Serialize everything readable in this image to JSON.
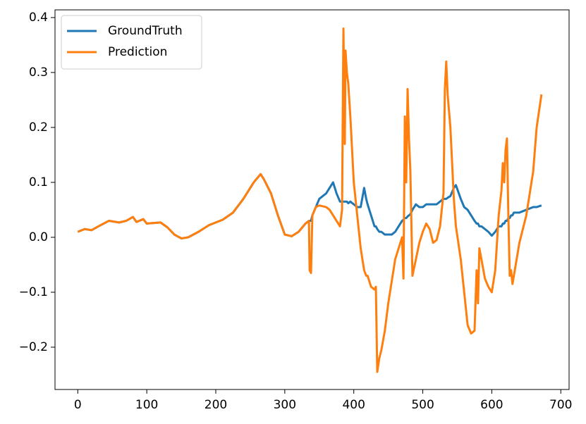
{
  "chart_data": {
    "type": "line",
    "x": [
      0,
      10,
      20,
      30,
      45,
      60,
      70,
      80,
      85,
      95,
      100,
      120,
      130,
      140,
      150,
      160,
      175,
      190,
      210,
      225,
      240,
      255,
      265,
      270,
      280,
      290,
      300,
      310,
      320,
      330,
      335,
      336,
      338,
      340,
      345,
      350,
      360,
      365,
      370,
      375,
      380,
      383,
      385,
      387,
      388,
      390,
      392,
      395,
      400,
      405,
      410,
      415,
      418,
      420,
      425,
      430,
      432,
      434,
      437,
      440,
      445,
      450,
      455,
      460,
      465,
      470,
      472,
      474,
      476,
      478,
      480,
      482,
      485,
      490,
      495,
      500,
      505,
      510,
      515,
      520,
      525,
      530,
      532,
      534,
      536,
      540,
      545,
      548,
      555,
      560,
      565,
      570,
      575,
      578,
      580,
      582,
      585,
      590,
      595,
      600,
      605,
      610,
      614,
      616,
      618,
      620,
      622,
      624,
      626,
      628,
      630,
      632,
      640,
      650,
      660,
      665,
      672
    ],
    "series": [
      {
        "name": "GroundTruth",
        "color": "#1f77b4",
        "values": [
          0.01,
          0.015,
          0.013,
          0.02,
          0.03,
          0.027,
          0.03,
          0.037,
          0.028,
          0.033,
          0.025,
          0.027,
          0.018,
          0.005,
          -0.002,
          0,
          0.01,
          0.022,
          0.032,
          0.045,
          0.07,
          0.1,
          0.115,
          0.105,
          0.08,
          0.04,
          0.005,
          0.002,
          0.01,
          0.025,
          0.03,
          0.03,
          0.03,
          0.04,
          0.055,
          0.07,
          0.08,
          0.09,
          0.1,
          0.08,
          0.065,
          0.065,
          0.065,
          0.065,
          0.065,
          0.065,
          0.062,
          0.065,
          0.06,
          0.055,
          0.055,
          0.09,
          0.07,
          0.06,
          0.04,
          0.02,
          0.02,
          0.015,
          0.01,
          0.01,
          0.005,
          0.005,
          0.005,
          0.01,
          0.02,
          0.03,
          0.032,
          0.035,
          0.035,
          0.038,
          0.04,
          0.042,
          0.05,
          0.06,
          0.055,
          0.055,
          0.06,
          0.06,
          0.06,
          0.06,
          0.065,
          0.07,
          0.07,
          0.07,
          0.072,
          0.075,
          0.09,
          0.095,
          0.07,
          0.055,
          0.05,
          0.04,
          0.03,
          0.025,
          0.025,
          0.02,
          0.02,
          0.015,
          0.01,
          0.003,
          0.01,
          0.02,
          0.02,
          0.025,
          0.025,
          0.03,
          0.03,
          0.035,
          0.035,
          0.04,
          0.04,
          0.045,
          0.045,
          0.05,
          0.055,
          0.055,
          0.058
        ]
      },
      {
        "name": "Prediction",
        "color": "#ff7f0e",
        "values": [
          0.01,
          0.015,
          0.013,
          0.02,
          0.03,
          0.027,
          0.03,
          0.037,
          0.028,
          0.033,
          0.025,
          0.027,
          0.018,
          0.005,
          -0.002,
          0,
          0.01,
          0.022,
          0.032,
          0.045,
          0.07,
          0.1,
          0.115,
          0.105,
          0.08,
          0.04,
          0.005,
          0.002,
          0.01,
          0.025,
          0.03,
          -0.06,
          -0.065,
          0.04,
          0.055,
          0.058,
          0.055,
          0.05,
          0.04,
          0.03,
          0.02,
          0.05,
          0.38,
          0.17,
          0.34,
          0.3,
          0.28,
          0.22,
          0.1,
          0.04,
          -0.02,
          -0.06,
          -0.07,
          -0.07,
          -0.09,
          -0.095,
          -0.09,
          -0.245,
          -0.22,
          -0.205,
          -0.17,
          -0.12,
          -0.08,
          -0.04,
          -0.02,
          0.0,
          -0.075,
          0.22,
          0.1,
          0.27,
          0.18,
          0.12,
          -0.07,
          -0.04,
          -0.01,
          0.01,
          0.025,
          0.015,
          -0.01,
          -0.005,
          0.02,
          0.08,
          0.27,
          0.32,
          0.26,
          0.2,
          0.07,
          0.02,
          -0.04,
          -0.1,
          -0.16,
          -0.175,
          -0.17,
          -0.06,
          -0.12,
          -0.02,
          -0.04,
          -0.075,
          -0.09,
          -0.1,
          -0.06,
          0.04,
          0.085,
          0.135,
          0.1,
          0.16,
          0.18,
          0.04,
          -0.07,
          -0.06,
          -0.085,
          -0.07,
          -0.01,
          0.04,
          0.12,
          0.2,
          0.26
        ]
      }
    ],
    "xlim": [
      -33,
      712
    ],
    "ylim": [
      -0.277,
      0.414
    ],
    "xticks": [
      0,
      100,
      200,
      300,
      400,
      500,
      600,
      700
    ],
    "yticks": [
      {
        "value": -0.2,
        "label": "−0.2"
      },
      {
        "value": -0.1,
        "label": "−0.1"
      },
      {
        "value": 0,
        "label": "0.0"
      },
      0.1,
      0.2,
      0.3,
      0.4
    ],
    "legend": "upper left"
  }
}
